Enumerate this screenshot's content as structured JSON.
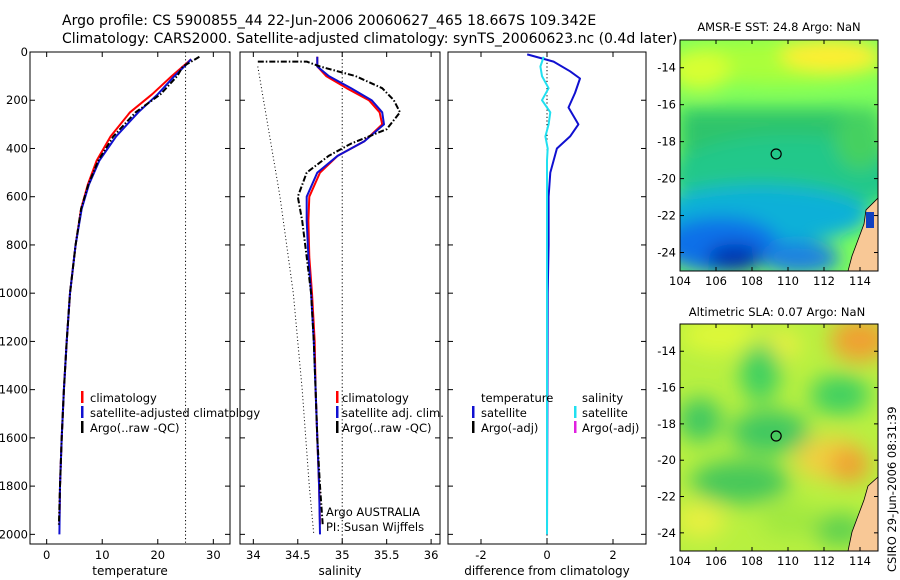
{
  "header": {
    "line1": "Argo profile: CS 5900855_44 22-Jun-2006 20060627_465 18.667S 109.342E",
    "line2": "Climatology: CARS2000. Satellite-adjusted climatology: synTS_20060623.nc (0.4d later)"
  },
  "colors": {
    "climatology": "#ff0000",
    "satellite": "#1010d0",
    "argo": "#000000",
    "sst_satellite": "#20e0f0",
    "salinity_argo_adj": "#e020e0"
  },
  "depth_ticks": [
    "0",
    "200",
    "400",
    "600",
    "800",
    "1000",
    "1200",
    "1400",
    "1600",
    "1800",
    "2000"
  ],
  "chart_data": [
    {
      "type": "line",
      "panel": "temperature",
      "xlabel": "temperature",
      "ylabel": "",
      "x_ticks": [
        "0",
        "10",
        "20",
        "30"
      ],
      "xlim": [
        -3,
        33
      ],
      "ylim": [
        2040,
        0
      ],
      "y_reversed": true,
      "reference_x": 25,
      "legend": [
        "climatology",
        "satellite-adjusted climatology",
        "Argo(..raw -QC)"
      ],
      "series": [
        {
          "name": "climatology",
          "color": "red",
          "points": [
            [
              26,
              30
            ],
            [
              25,
              50
            ],
            [
              22.5,
              100
            ],
            [
              19,
              175
            ],
            [
              15,
              250
            ],
            [
              11.5,
              350
            ],
            [
              9,
              450
            ],
            [
              7.4,
              550
            ],
            [
              6.2,
              650
            ],
            [
              5.2,
              800
            ],
            [
              4.2,
              1000
            ],
            [
              3.6,
              1200
            ],
            [
              3.1,
              1400
            ],
            [
              2.7,
              1600
            ],
            [
              2.4,
              1800
            ],
            [
              2.3,
              1960
            ]
          ]
        },
        {
          "name": "satellite-adjusted climatology",
          "color": "blue",
          "points": [
            [
              26,
              30
            ],
            [
              25.2,
              50
            ],
            [
              23,
              100
            ],
            [
              20,
              175
            ],
            [
              16.5,
              250
            ],
            [
              12.5,
              350
            ],
            [
              9.5,
              450
            ],
            [
              7.6,
              550
            ],
            [
              6.3,
              650
            ],
            [
              5.2,
              800
            ],
            [
              4.2,
              1000
            ],
            [
              3.6,
              1200
            ],
            [
              3.1,
              1400
            ],
            [
              2.7,
              1600
            ],
            [
              2.4,
              1800
            ],
            [
              2.3,
              2000
            ]
          ]
        },
        {
          "name": "Argo(..raw -QC)",
          "color": "black",
          "points": [
            [
              27.5,
              20
            ],
            [
              24.5,
              60
            ],
            [
              23.5,
              100
            ],
            [
              20.5,
              175
            ],
            [
              16,
              250
            ],
            [
              12,
              350
            ],
            [
              9.3,
              450
            ],
            [
              7.5,
              550
            ],
            [
              6.2,
              650
            ],
            [
              5.2,
              800
            ],
            [
              4.2,
              1000
            ],
            [
              3.6,
              1200
            ],
            [
              3.1,
              1400
            ],
            [
              2.7,
              1600
            ],
            [
              2.4,
              1800
            ],
            [
              2.2,
              1960
            ]
          ]
        }
      ]
    },
    {
      "type": "line",
      "panel": "salinity",
      "xlabel": "salinity",
      "ylabel": "",
      "x_ticks": [
        "34",
        "34.5",
        "35",
        "35.5",
        "36"
      ],
      "xlim": [
        33.85,
        36.1
      ],
      "ylim": [
        2040,
        0
      ],
      "y_reversed": true,
      "reference_x": 35,
      "legend": [
        "climatology",
        "satellite adj. clim.",
        "Argo(..raw -QC)"
      ],
      "annotation": [
        "Argo AUSTRALIA",
        "PI: Susan Wijffels"
      ],
      "series": [
        {
          "name": "climatology",
          "color": "red",
          "points": [
            [
              34.72,
              20
            ],
            [
              34.72,
              60
            ],
            [
              34.82,
              100
            ],
            [
              35.05,
              150
            ],
            [
              35.3,
              200
            ],
            [
              35.42,
              250
            ],
            [
              35.45,
              300
            ],
            [
              35.25,
              370
            ],
            [
              34.95,
              430
            ],
            [
              34.75,
              500
            ],
            [
              34.63,
              600
            ],
            [
              34.62,
              700
            ],
            [
              34.63,
              850
            ],
            [
              34.66,
              1000
            ],
            [
              34.69,
              1200
            ],
            [
              34.7,
              1400
            ],
            [
              34.72,
              1600
            ],
            [
              34.74,
              1800
            ],
            [
              34.75,
              1960
            ]
          ]
        },
        {
          "name": "satellite adj. clim.",
          "color": "blue",
          "points": [
            [
              34.72,
              20
            ],
            [
              34.72,
              60
            ],
            [
              34.85,
              100
            ],
            [
              35.1,
              150
            ],
            [
              35.33,
              200
            ],
            [
              35.45,
              250
            ],
            [
              35.47,
              300
            ],
            [
              35.25,
              370
            ],
            [
              34.95,
              430
            ],
            [
              34.72,
              500
            ],
            [
              34.6,
              600
            ],
            [
              34.6,
              700
            ],
            [
              34.62,
              850
            ],
            [
              34.65,
              1000
            ],
            [
              34.68,
              1200
            ],
            [
              34.7,
              1400
            ],
            [
              34.72,
              1600
            ],
            [
              34.74,
              1800
            ],
            [
              34.75,
              2000
            ]
          ]
        },
        {
          "name": "Argo(..raw -QC)",
          "color": "black",
          "points": [
            [
              34.05,
              40
            ],
            [
              34.6,
              40
            ],
            [
              34.75,
              60
            ],
            [
              35.15,
              100
            ],
            [
              35.45,
              150
            ],
            [
              35.58,
              200
            ],
            [
              35.65,
              250
            ],
            [
              35.5,
              320
            ],
            [
              35.1,
              380
            ],
            [
              34.85,
              430
            ],
            [
              34.6,
              500
            ],
            [
              34.5,
              600
            ],
            [
              34.55,
              700
            ],
            [
              34.6,
              850
            ],
            [
              34.65,
              1000
            ],
            [
              34.68,
              1200
            ],
            [
              34.7,
              1400
            ],
            [
              34.72,
              1600
            ],
            [
              34.75,
              1800
            ],
            [
              34.78,
              1960
            ]
          ]
        },
        {
          "name": "",
          "color": "black-dotted",
          "points": [
            [
              34.05,
              60
            ],
            [
              34.3,
              600
            ],
            [
              34.45,
              1000
            ],
            [
              34.55,
              1400
            ],
            [
              34.63,
              1800
            ],
            [
              34.68,
              2000
            ]
          ]
        }
      ]
    },
    {
      "type": "line",
      "panel": "difference",
      "xlabel": "difference from climatology",
      "ylabel": "",
      "x_ticks": [
        "-2",
        "0",
        "2"
      ],
      "xlim": [
        -3,
        3
      ],
      "ylim": [
        2040,
        0
      ],
      "y_reversed": true,
      "reference_x": 0,
      "legend_temperature": [
        "temperature",
        "satellite",
        "Argo(-adj)"
      ],
      "legend_salinity": [
        "salinity",
        "satellite",
        "Argo(-adj)"
      ],
      "series": [
        {
          "name": "satellite",
          "group": "temperature",
          "color": "blue",
          "points": [
            [
              -0.6,
              10
            ],
            [
              0.2,
              40
            ],
            [
              0.7,
              80
            ],
            [
              1.0,
              110
            ],
            [
              0.85,
              170
            ],
            [
              0.65,
              230
            ],
            [
              0.95,
              300
            ],
            [
              0.7,
              350
            ],
            [
              0.3,
              400
            ],
            [
              0.1,
              500
            ],
            [
              0.05,
              600
            ],
            [
              0.05,
              800
            ],
            [
              0.02,
              1000
            ],
            [
              0.0,
              2000
            ]
          ]
        },
        {
          "name": "satellite",
          "group": "salinity",
          "color": "cyan",
          "points": [
            [
              -0.1,
              20
            ],
            [
              -0.2,
              60
            ],
            [
              -0.15,
              100
            ],
            [
              0.05,
              150
            ],
            [
              -0.15,
              200
            ],
            [
              0.1,
              250
            ],
            [
              0.05,
              300
            ],
            [
              -0.05,
              350
            ],
            [
              0.02,
              400
            ],
            [
              0.0,
              450
            ],
            [
              0.0,
              2000
            ]
          ]
        }
      ]
    },
    {
      "type": "heatmap",
      "panel": "map-sst",
      "title": "AMSR-E SST: 24.8 Argo: NaN",
      "x_ticks": [
        "104",
        "106",
        "108",
        "110",
        "112",
        "114"
      ],
      "y_ticks": [
        "-14",
        "-16",
        "-18",
        "-20",
        "-22",
        "-24"
      ],
      "xlim": [
        104,
        115
      ],
      "ylim": [
        -25,
        -12.5
      ],
      "float_position": [
        109.342,
        -18.667
      ]
    },
    {
      "type": "heatmap",
      "panel": "map-sla",
      "title": "Altimetric SLA: 0.07 Argo: NaN",
      "x_ticks": [
        "104",
        "106",
        "108",
        "110",
        "112",
        "114"
      ],
      "y_ticks": [
        "-14",
        "-16",
        "-18",
        "-20",
        "-22",
        "-24"
      ],
      "xlim": [
        104,
        115
      ],
      "ylim": [
        -25,
        -12.5
      ],
      "float_position": [
        109.342,
        -18.667
      ]
    }
  ],
  "side_text": "CSIRO 29-Jun-2006 08:31:39"
}
